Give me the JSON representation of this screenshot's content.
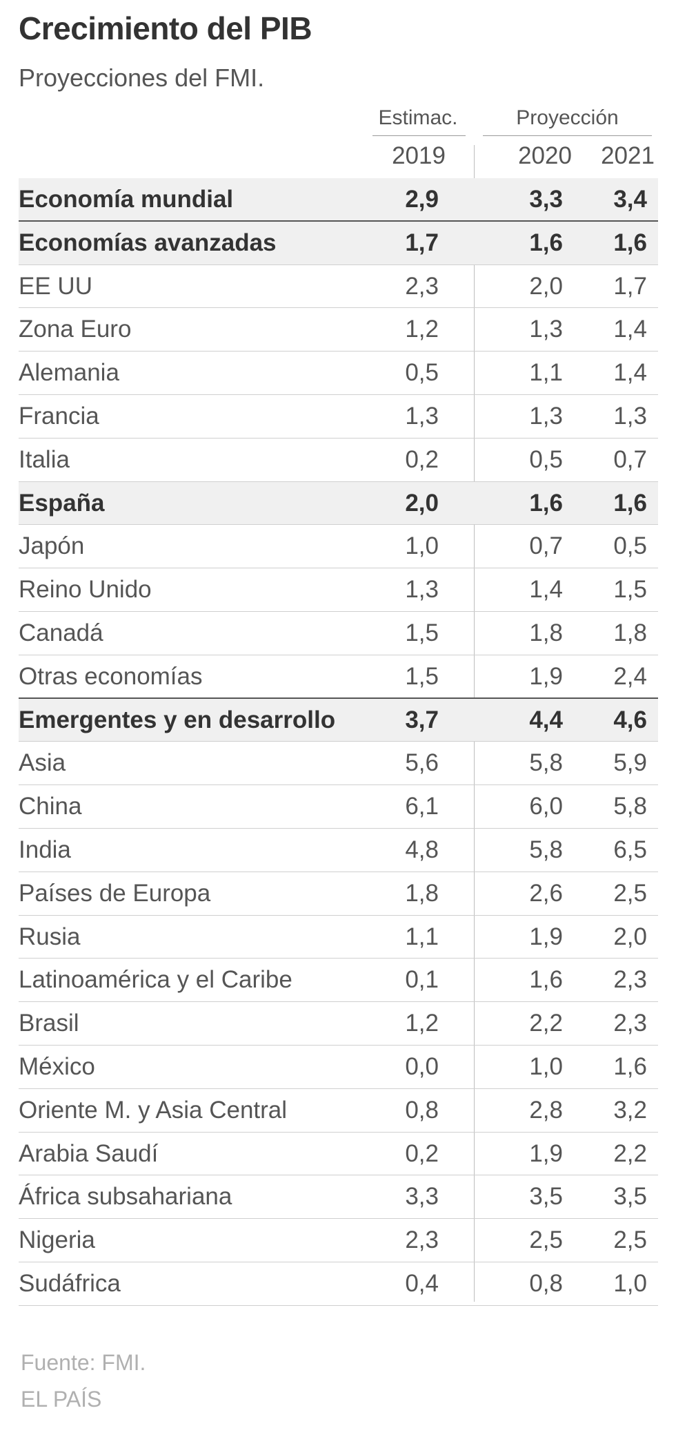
{
  "title": "Crecimiento del PIB",
  "subtitle": "Proyecciones del FMI.",
  "source": "Fuente: FMI.",
  "brand": "EL PAÍS",
  "colors": {
    "text": "#333333",
    "muted": "#555555",
    "highlight_bg": "#f0f0f0",
    "footer": "#b0b0b0"
  },
  "chart_data": {
    "type": "table",
    "title": "Crecimiento del PIB",
    "subtitle": "Proyecciones del FMI.",
    "column_groups": [
      {
        "label": "Estimac.",
        "columns": [
          "2019"
        ]
      },
      {
        "label": "Proyección",
        "columns": [
          "2020",
          "2021"
        ]
      }
    ],
    "columns": [
      "2019",
      "2020",
      "2021"
    ],
    "rows": [
      {
        "name": "Economía mundial",
        "values": [
          "2,9",
          "3,3",
          "3,4"
        ],
        "bold": true
      },
      {
        "name": "Economías avanzadas",
        "values": [
          "1,7",
          "1,6",
          "1,6"
        ],
        "bold": true
      },
      {
        "name": "EE UU",
        "values": [
          "2,3",
          "2,0",
          "1,7"
        ],
        "bold": false
      },
      {
        "name": "Zona Euro",
        "values": [
          "1,2",
          "1,3",
          "1,4"
        ],
        "bold": false
      },
      {
        "name": "Alemania",
        "values": [
          "0,5",
          "1,1",
          "1,4"
        ],
        "bold": false
      },
      {
        "name": "Francia",
        "values": [
          "1,3",
          "1,3",
          "1,3"
        ],
        "bold": false
      },
      {
        "name": "Italia",
        "values": [
          "0,2",
          "0,5",
          "0,7"
        ],
        "bold": false
      },
      {
        "name": "España",
        "values": [
          "2,0",
          "1,6",
          "1,6"
        ],
        "bold": true
      },
      {
        "name": "Japón",
        "values": [
          "1,0",
          "0,7",
          "0,5"
        ],
        "bold": false
      },
      {
        "name": "Reino Unido",
        "values": [
          "1,3",
          "1,4",
          "1,5"
        ],
        "bold": false
      },
      {
        "name": "Canadá",
        "values": [
          "1,5",
          "1,8",
          "1,8"
        ],
        "bold": false
      },
      {
        "name": "Otras economías",
        "values": [
          "1,5",
          "1,9",
          "2,4"
        ],
        "bold": false
      },
      {
        "name": "Emergentes y en desarrollo",
        "values": [
          "3,7",
          "4,4",
          "4,6"
        ],
        "bold": true
      },
      {
        "name": "Asia",
        "values": [
          "5,6",
          "5,8",
          "5,9"
        ],
        "bold": false
      },
      {
        "name": "China",
        "values": [
          "6,1",
          "6,0",
          "5,8"
        ],
        "bold": false
      },
      {
        "name": "India",
        "values": [
          "4,8",
          "5,8",
          "6,5"
        ],
        "bold": false
      },
      {
        "name": "Países de Europa",
        "values": [
          "1,8",
          "2,6",
          "2,5"
        ],
        "bold": false
      },
      {
        "name": "Rusia",
        "values": [
          "1,1",
          "1,9",
          "2,0"
        ],
        "bold": false
      },
      {
        "name": "Latinoamérica y el Caribe",
        "values": [
          "0,1",
          "1,6",
          "2,3"
        ],
        "bold": false
      },
      {
        "name": "Brasil",
        "values": [
          "1,2",
          "2,2",
          "2,3"
        ],
        "bold": false
      },
      {
        "name": "México",
        "values": [
          "0,0",
          "1,0",
          "1,6"
        ],
        "bold": false
      },
      {
        "name": "Oriente M. y Asia Central",
        "values": [
          "0,8",
          "2,8",
          "3,2"
        ],
        "bold": false
      },
      {
        "name": "Arabia Saudí",
        "values": [
          "0,2",
          "1,9",
          "2,2"
        ],
        "bold": false
      },
      {
        "name": "África subsahariana",
        "values": [
          "3,3",
          "3,5",
          "3,5"
        ],
        "bold": false
      },
      {
        "name": "Nigeria",
        "values": [
          "2,3",
          "2,5",
          "2,5"
        ],
        "bold": false
      },
      {
        "name": "Sudáfrica",
        "values": [
          "0,4",
          "0,8",
          "1,0"
        ],
        "bold": false
      }
    ]
  }
}
